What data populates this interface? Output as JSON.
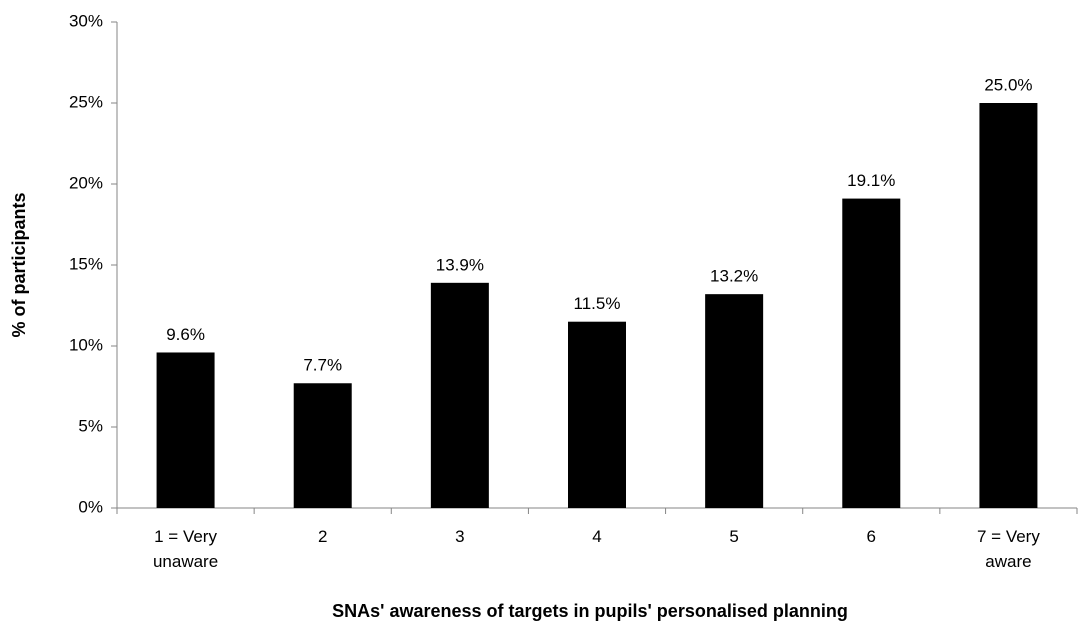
{
  "chart_data": {
    "type": "bar",
    "categories": [
      "1 = Very unaware",
      "2",
      "3",
      "4",
      "5",
      "6",
      "7 = Very aware"
    ],
    "values": [
      9.6,
      7.7,
      13.9,
      11.5,
      13.2,
      19.1,
      25.0
    ],
    "value_labels": [
      "9.6%",
      "7.7%",
      "13.9%",
      "11.5%",
      "13.2%",
      "19.1%",
      "25.0%"
    ],
    "color": "#000000",
    "x_label": "SNAs' awareness of targets in pupils' personalised planning",
    "y_label": "% of participants",
    "ylim": [
      0,
      30
    ],
    "yticks": [
      {
        "value": 0,
        "label": "0%"
      },
      {
        "value": 5,
        "label": "5%"
      },
      {
        "value": 10,
        "label": "10%"
      },
      {
        "value": 15,
        "label": "15%"
      },
      {
        "value": 20,
        "label": "20%"
      },
      {
        "value": 25,
        "label": "25%"
      },
      {
        "value": 30,
        "label": "30%"
      }
    ],
    "grid": false
  }
}
